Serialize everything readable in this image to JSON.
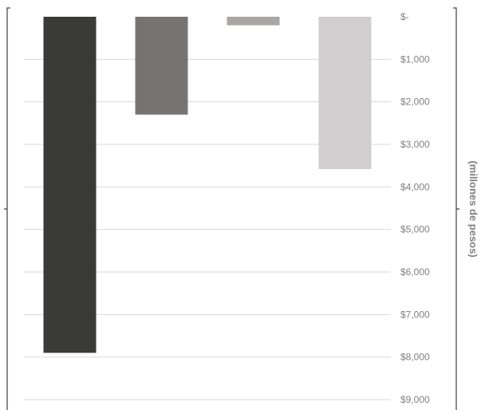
{
  "chart_data": {
    "type": "bar",
    "orientation": "vertical",
    "y_axis_inverted": true,
    "y_axis_position": "right",
    "categories": [
      "",
      "",
      "",
      ""
    ],
    "values": [
      7900,
      2300,
      200,
      3580
    ],
    "colors": [
      "#3a3a38",
      "#777371",
      "#a9a6a6",
      "#d0cece"
    ],
    "ylabel": "(millones de pesos)",
    "ylim": [
      0,
      9000
    ],
    "yticks": [
      0,
      1000,
      2000,
      3000,
      4000,
      5000,
      6000,
      7000,
      8000,
      9000
    ],
    "ytick_labels": [
      "$-",
      "$1,000",
      "$2,000",
      "$3,000",
      "$4,000",
      "$5,000",
      "$6,000",
      "$7,000",
      "$8,000",
      "$9,000"
    ],
    "grid": true,
    "legend": "none"
  }
}
